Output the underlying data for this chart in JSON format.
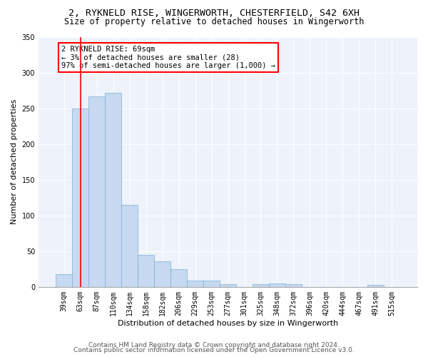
{
  "title_line1": "2, RYKNELD RISE, WINGERWORTH, CHESTERFIELD, S42 6XH",
  "title_line2": "Size of property relative to detached houses in Wingerworth",
  "xlabel": "Distribution of detached houses by size in Wingerworth",
  "ylabel": "Number of detached properties",
  "bar_color": "#c6d9f0",
  "bar_edge_color": "#7bafd4",
  "categories": [
    "39sqm",
    "63sqm",
    "87sqm",
    "110sqm",
    "134sqm",
    "158sqm",
    "182sqm",
    "206sqm",
    "229sqm",
    "253sqm",
    "277sqm",
    "301sqm",
    "325sqm",
    "348sqm",
    "372sqm",
    "396sqm",
    "420sqm",
    "444sqm",
    "467sqm",
    "491sqm",
    "515sqm"
  ],
  "values": [
    18,
    250,
    267,
    272,
    115,
    45,
    36,
    25,
    9,
    9,
    4,
    0,
    4,
    5,
    4,
    0,
    0,
    0,
    0,
    3,
    0
  ],
  "ylim": [
    0,
    350
  ],
  "yticks": [
    0,
    50,
    100,
    150,
    200,
    250,
    300,
    350
  ],
  "red_line_x": 1.0,
  "annotation_text": "2 RYKNELD RISE: 69sqm\n← 3% of detached houses are smaller (28)\n97% of semi-detached houses are larger (1,000) →",
  "footer_line1": "Contains HM Land Registry data © Crown copyright and database right 2024.",
  "footer_line2": "Contains public sector information licensed under the Open Government Licence v3.0.",
  "background_color": "#eef3fb",
  "grid_color": "#ffffff",
  "title_fontsize": 9.5,
  "subtitle_fontsize": 8.5,
  "axis_label_fontsize": 8,
  "tick_fontsize": 7,
  "annotation_fontsize": 7.5,
  "footer_fontsize": 6.5
}
